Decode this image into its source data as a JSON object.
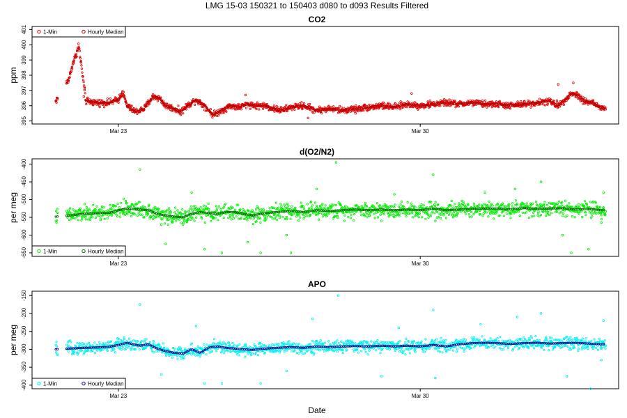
{
  "figure_title": "LMG   15-03    150321 to 150403    d080 to d093   Results Filtered",
  "xlabel": "Date",
  "chart_data": [
    {
      "type": "scatter",
      "title": "CO2",
      "ylabel": "ppm",
      "xlim": [
        80.0,
        93.6
      ],
      "ylim": [
        394.8,
        401.2
      ],
      "yticks": [
        395,
        396,
        397,
        398,
        399,
        400,
        401
      ],
      "xticks": [
        {
          "value": 82,
          "label": "Mar 23"
        },
        {
          "value": 89,
          "label": "Mar 30"
        }
      ],
      "legend": {
        "position": "top-left",
        "entries": [
          "1-Min",
          "Hourly Median"
        ]
      },
      "series_colors": {
        "raw": "#e00000",
        "median": "#b00000"
      },
      "baseline": [
        [
          80.55,
          396.3
        ],
        [
          80.85,
          397.7
        ],
        [
          80.95,
          398.8
        ],
        [
          81.05,
          399.6
        ],
        [
          81.08,
          400.0
        ],
        [
          81.25,
          396.3
        ],
        [
          81.5,
          396.2
        ],
        [
          81.8,
          396.2
        ],
        [
          82.0,
          396.4
        ],
        [
          82.1,
          396.9
        ],
        [
          82.2,
          396.0
        ],
        [
          82.4,
          395.6
        ],
        [
          82.6,
          395.8
        ],
        [
          82.8,
          396.6
        ],
        [
          82.95,
          396.5
        ],
        [
          83.1,
          396.0
        ],
        [
          83.3,
          395.8
        ],
        [
          83.45,
          395.6
        ],
        [
          83.6,
          396.0
        ],
        [
          83.8,
          396.4
        ],
        [
          84.0,
          396.0
        ],
        [
          84.2,
          395.4
        ],
        [
          84.4,
          395.7
        ],
        [
          84.6,
          396.0
        ],
        [
          84.8,
          395.9
        ],
        [
          85.0,
          396.1
        ],
        [
          85.2,
          396.0
        ],
        [
          85.4,
          396.0
        ],
        [
          85.6,
          395.8
        ],
        [
          85.8,
          395.7
        ],
        [
          86.0,
          395.9
        ],
        [
          86.3,
          396.0
        ],
        [
          86.6,
          395.7
        ],
        [
          86.9,
          395.8
        ],
        [
          87.2,
          395.7
        ],
        [
          87.5,
          395.8
        ],
        [
          87.8,
          395.9
        ],
        [
          88.1,
          396.0
        ],
        [
          88.4,
          395.9
        ],
        [
          88.7,
          396.1
        ],
        [
          89.0,
          396.0
        ],
        [
          89.3,
          396.1
        ],
        [
          89.6,
          396.2
        ],
        [
          89.9,
          396.1
        ],
        [
          90.2,
          396.2
        ],
        [
          90.5,
          396.1
        ],
        [
          90.8,
          396.1
        ],
        [
          91.1,
          396.0
        ],
        [
          91.4,
          396.1
        ],
        [
          91.7,
          396.2
        ],
        [
          92.0,
          396.3
        ],
        [
          92.2,
          396.0
        ],
        [
          92.35,
          396.4
        ],
        [
          92.5,
          396.8
        ],
        [
          92.65,
          396.7
        ],
        [
          92.8,
          396.3
        ],
        [
          93.0,
          396.2
        ],
        [
          93.15,
          395.9
        ],
        [
          93.3,
          395.8
        ]
      ],
      "spread": 0.18,
      "sparse_points": [
        [
          81.2,
          396.6
        ],
        [
          84.95,
          396.7
        ],
        [
          87.5,
          395.5
        ],
        [
          88.8,
          396.8
        ],
        [
          92.2,
          397.4
        ],
        [
          92.55,
          397.5
        ],
        [
          86.4,
          395.2
        ]
      ]
    },
    {
      "type": "scatter",
      "title": "d(O2/N2)",
      "ylabel": "per meg",
      "xlim": [
        80.0,
        93.6
      ],
      "ylim": [
        -660,
        -385
      ],
      "yticks": [
        -650,
        -600,
        -550,
        -500,
        -450,
        -400
      ],
      "xticks": [
        {
          "value": 82,
          "label": "Mar 23"
        },
        {
          "value": 89,
          "label": "Mar 30"
        }
      ],
      "legend": {
        "position": "bottom-left",
        "entries": [
          "1-Min",
          "Hourly Median"
        ]
      },
      "series_colors": {
        "raw": "#00ee00",
        "median": "#006600"
      },
      "baseline": [
        [
          80.55,
          -548
        ],
        [
          80.85,
          -545
        ],
        [
          81.2,
          -540
        ],
        [
          81.5,
          -538
        ],
        [
          81.8,
          -537
        ],
        [
          82.0,
          -530
        ],
        [
          82.2,
          -525
        ],
        [
          82.5,
          -528
        ],
        [
          82.7,
          -530
        ],
        [
          82.9,
          -540
        ],
        [
          83.1,
          -545
        ],
        [
          83.3,
          -548
        ],
        [
          83.5,
          -550
        ],
        [
          83.7,
          -540
        ],
        [
          83.9,
          -535
        ],
        [
          84.1,
          -538
        ],
        [
          84.3,
          -540
        ],
        [
          84.5,
          -535
        ],
        [
          84.7,
          -535
        ],
        [
          84.9,
          -540
        ],
        [
          85.1,
          -545
        ],
        [
          85.4,
          -538
        ],
        [
          85.7,
          -535
        ],
        [
          86.0,
          -532
        ],
        [
          86.3,
          -535
        ],
        [
          86.6,
          -530
        ],
        [
          86.9,
          -532
        ],
        [
          87.2,
          -530
        ],
        [
          87.5,
          -528
        ],
        [
          87.8,
          -530
        ],
        [
          88.1,
          -528
        ],
        [
          88.4,
          -530
        ],
        [
          88.7,
          -528
        ],
        [
          89.0,
          -530
        ],
        [
          89.3,
          -525
        ],
        [
          89.6,
          -530
        ],
        [
          89.9,
          -528
        ],
        [
          90.2,
          -526
        ],
        [
          90.5,
          -525
        ],
        [
          90.8,
          -525
        ],
        [
          91.1,
          -527
        ],
        [
          91.4,
          -524
        ],
        [
          91.7,
          -526
        ],
        [
          92.0,
          -525
        ],
        [
          92.3,
          -524
        ],
        [
          92.6,
          -528
        ],
        [
          92.9,
          -526
        ],
        [
          93.2,
          -530
        ],
        [
          93.3,
          -528
        ]
      ],
      "spread": 18,
      "sparse_points": [
        [
          82.5,
          -415
        ],
        [
          83.0,
          -570
        ],
        [
          83.7,
          -480
        ],
        [
          84.0,
          -640
        ],
        [
          84.4,
          -650
        ],
        [
          85.0,
          -620
        ],
        [
          85.3,
          -650
        ],
        [
          85.9,
          -600
        ],
        [
          87.05,
          -395
        ],
        [
          86.6,
          -470
        ],
        [
          88.1,
          -560
        ],
        [
          88.4,
          -485
        ],
        [
          89.3,
          -430
        ],
        [
          89.35,
          -560
        ],
        [
          90.5,
          -480
        ],
        [
          91.2,
          -470
        ],
        [
          91.8,
          -450
        ],
        [
          92.3,
          -600
        ],
        [
          92.5,
          -650
        ],
        [
          92.9,
          -640
        ],
        [
          93.25,
          -480
        ],
        [
          93.2,
          -565
        ],
        [
          83.1,
          -625
        ],
        [
          86.0,
          -650
        ]
      ]
    },
    {
      "type": "scatter",
      "title": "APO",
      "ylabel": "per meg",
      "xlim": [
        80.0,
        93.6
      ],
      "ylim": [
        -410,
        -138
      ],
      "yticks": [
        -400,
        -350,
        -300,
        -250,
        -200,
        -150
      ],
      "xticks": [
        {
          "value": 82,
          "label": "Mar 23"
        },
        {
          "value": 89,
          "label": "Mar 30"
        }
      ],
      "legend": {
        "position": "bottom-left",
        "entries": [
          "1-Min",
          "Hourly Median"
        ]
      },
      "series_colors": {
        "raw": "#00f0f0",
        "median": "#000088"
      },
      "baseline": [
        [
          80.55,
          -300
        ],
        [
          80.85,
          -298
        ],
        [
          81.2,
          -296
        ],
        [
          81.5,
          -295
        ],
        [
          81.8,
          -293
        ],
        [
          82.0,
          -288
        ],
        [
          82.2,
          -282
        ],
        [
          82.5,
          -290
        ],
        [
          82.7,
          -286
        ],
        [
          82.9,
          -298
        ],
        [
          83.1,
          -305
        ],
        [
          83.3,
          -310
        ],
        [
          83.5,
          -312
        ],
        [
          83.7,
          -300
        ],
        [
          83.9,
          -310
        ],
        [
          84.1,
          -295
        ],
        [
          84.3,
          -292
        ],
        [
          84.5,
          -296
        ],
        [
          84.7,
          -298
        ],
        [
          84.9,
          -300
        ],
        [
          85.1,
          -302
        ],
        [
          85.4,
          -298
        ],
        [
          85.7,
          -296
        ],
        [
          86.0,
          -294
        ],
        [
          86.3,
          -296
        ],
        [
          86.6,
          -292
        ],
        [
          86.9,
          -294
        ],
        [
          87.2,
          -292
        ],
        [
          87.5,
          -291
        ],
        [
          87.8,
          -292
        ],
        [
          88.1,
          -290
        ],
        [
          88.4,
          -292
        ],
        [
          88.7,
          -290
        ],
        [
          89.0,
          -292
        ],
        [
          89.3,
          -288
        ],
        [
          89.6,
          -292
        ],
        [
          89.9,
          -286
        ],
        [
          90.2,
          -283
        ],
        [
          90.5,
          -282
        ],
        [
          90.8,
          -283
        ],
        [
          91.1,
          -285
        ],
        [
          91.4,
          -283
        ],
        [
          91.7,
          -282
        ],
        [
          92.0,
          -284
        ],
        [
          92.3,
          -283
        ],
        [
          92.6,
          -282
        ],
        [
          92.9,
          -284
        ],
        [
          93.2,
          -286
        ],
        [
          93.3,
          -285
        ]
      ],
      "spread": 14,
      "sparse_points": [
        [
          82.5,
          -175
        ],
        [
          83.0,
          -370
        ],
        [
          83.8,
          -235
        ],
        [
          84.0,
          -395
        ],
        [
          84.4,
          -395
        ],
        [
          85.3,
          -395
        ],
        [
          85.9,
          -360
        ],
        [
          87.1,
          -150
        ],
        [
          86.5,
          -215
        ],
        [
          88.1,
          -375
        ],
        [
          88.5,
          -240
        ],
        [
          89.3,
          -190
        ],
        [
          89.35,
          -380
        ],
        [
          90.4,
          -230
        ],
        [
          91.25,
          -210
        ],
        [
          91.8,
          -200
        ],
        [
          92.4,
          -375
        ],
        [
          92.95,
          -410
        ],
        [
          93.25,
          -220
        ],
        [
          93.2,
          -330
        ]
      ]
    }
  ]
}
